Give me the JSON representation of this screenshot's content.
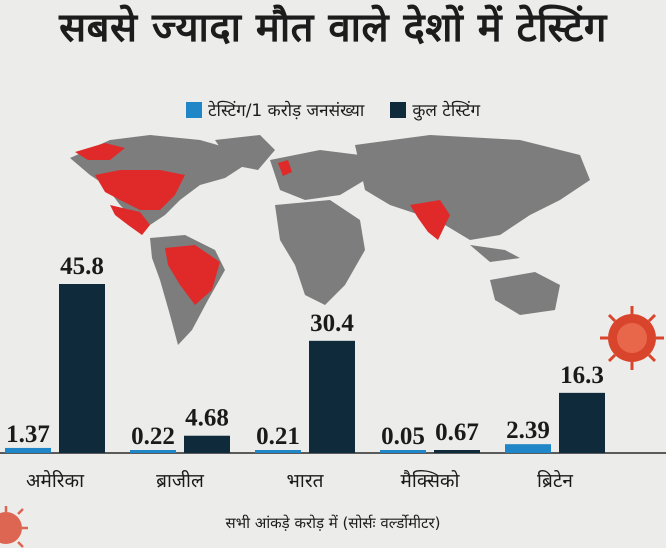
{
  "colors": {
    "per_population": "#1f86c8",
    "total": "#0f2a3a",
    "map_land": "#7d7d7d",
    "map_highlight": "#e02a2a",
    "virus": "#d8452c"
  },
  "chart_data": {
    "type": "bar",
    "title": "सबसे ज्यादा मौत वाले देशों में टेस्टिंग",
    "categories": [
      "अमेरिका",
      "ब्राजील",
      "भारत",
      "मैक्सिको",
      "ब्रिटेन"
    ],
    "series": [
      {
        "name": "टेस्टिंग/1 करोड़ जनसंख्या",
        "values": [
          1.37,
          0.22,
          0.21,
          0.05,
          2.39
        ],
        "value_labels": [
          "1.37",
          "0.22",
          "0.21",
          "0.05",
          "2.39"
        ]
      },
      {
        "name": "कुल टेस्टिंग",
        "values": [
          45.8,
          4.68,
          30.4,
          0.67,
          16.3
        ],
        "value_labels": [
          "45.8",
          "4.68",
          "30.4",
          "0.67",
          "16.3"
        ]
      }
    ],
    "ylim": [
      0,
      50
    ],
    "legend_position": "top-center",
    "grid": false
  },
  "footnote": "सभी आंकड़े करोड़ में (सोर्सः वर्ल्डोमीटर)"
}
